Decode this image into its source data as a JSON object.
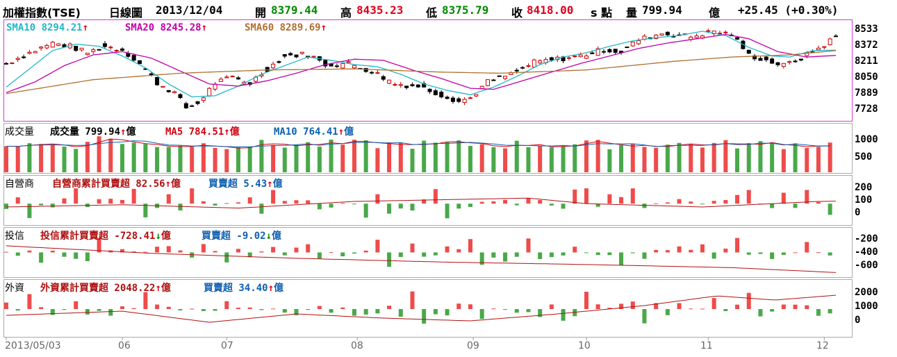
{
  "header": {
    "index_name": "加權指數(TSE)",
    "period": "日線圖",
    "date": "2013/12/04",
    "open_label": "開",
    "open": "8379.44",
    "high_label": "高",
    "high": "8435.23",
    "low_label": "低",
    "low": "8375.79",
    "close_label": "收",
    "close": "8418.00",
    "change_unit": "s 點",
    "volume_label": "量",
    "volume": "799.94",
    "volume_unit": "億",
    "change": "+25.45 (+0.30%)"
  },
  "legends": {
    "sma10": "SMA10 8294.21",
    "sma20": "SMA20 8245.28",
    "sma60": "SMA60 8289.69",
    "vol_title": "成交量",
    "vol_value": "成交量 799.94",
    "vol_unit": "億",
    "ma5": "MA5 784.51",
    "ma5_unit": "億",
    "ma10": "MA10 764.41",
    "ma10_unit": "億",
    "dealer_title": "自營商",
    "dealer_cum": "自營商累計買賣超 82.56",
    "dealer_unit": "億",
    "dealer_net": "買賣超 5.43",
    "dealer_net_unit": "億",
    "trust_title": "投信",
    "trust_cum": "投信累計買賣超 -728.41",
    "trust_unit": "億",
    "trust_net": "買賣超 -9.02",
    "trust_net_unit": "億",
    "foreign_title": "外資",
    "foreign_cum": "外資累計買賣超 2048.22",
    "foreign_unit": "億",
    "foreign_net": "買賣超 34.40",
    "foreign_net_unit": "億",
    "up_arrow": "↑",
    "down_arrow": "↓"
  },
  "axes": {
    "price_ticks": [
      "8533",
      "8372",
      "8211",
      "8050",
      "7889",
      "7728"
    ],
    "volume_ticks": [
      "1000",
      "500"
    ],
    "dealer_ticks": [
      "200",
      "100",
      "0"
    ],
    "trust_ticks": [
      "-200",
      "-400",
      "-600"
    ],
    "foreign_ticks": [
      "2000",
      "1000",
      "0"
    ],
    "x_labels": [
      "2013/05/03",
      "06",
      "07",
      "08",
      "09",
      "10",
      "11",
      "12"
    ]
  },
  "colors": {
    "up": "#e0001b",
    "down": "#008a00",
    "bar_up": "#ef4b4b",
    "bar_down": "#49a849",
    "sma10": "#20b8c8",
    "sma20": "#c000a8",
    "sma60": "#b07030",
    "ma5": "#d00010",
    "ma10": "#1060b0",
    "cum_line": "#b01010"
  },
  "chart_data": [
    {
      "type": "candlestick",
      "title": "加權指數(TSE) 日線圖",
      "ylim": [
        7650,
        8560
      ],
      "series": [
        {
          "name": "SMA10",
          "points": [
            [
              0,
              7950
            ],
            [
              8,
              8120
            ],
            [
              16,
              8290
            ],
            [
              24,
              8350
            ],
            [
              32,
              8330
            ],
            [
              40,
              8240
            ],
            [
              48,
              8130
            ],
            [
              56,
              7980
            ],
            [
              64,
              7860
            ],
            [
              72,
              7870
            ],
            [
              80,
              7960
            ],
            [
              88,
              8070
            ],
            [
              96,
              8150
            ],
            [
              104,
              8230
            ],
            [
              112,
              8200
            ],
            [
              120,
              8160
            ],
            [
              128,
              8140
            ],
            [
              136,
              8070
            ],
            [
              144,
              7980
            ],
            [
              152,
              7920
            ],
            [
              160,
              7880
            ],
            [
              168,
              7950
            ],
            [
              176,
              8050
            ],
            [
              184,
              8160
            ],
            [
              192,
              8230
            ],
            [
              200,
              8270
            ],
            [
              208,
              8330
            ],
            [
              216,
              8380
            ],
            [
              224,
              8410
            ],
            [
              232,
              8430
            ],
            [
              240,
              8470
            ],
            [
              248,
              8430
            ],
            [
              256,
              8320
            ],
            [
              264,
              8240
            ],
            [
              270,
              8230
            ],
            [
              278,
              8290
            ],
            [
              286,
              8294
            ]
          ]
        },
        {
          "name": "SMA20",
          "points": [
            [
              0,
              7900
            ],
            [
              10,
              8000
            ],
            [
              20,
              8150
            ],
            [
              30,
              8250
            ],
            [
              40,
              8280
            ],
            [
              50,
              8220
            ],
            [
              60,
              8100
            ],
            [
              70,
              7980
            ],
            [
              80,
              7960
            ],
            [
              90,
              8010
            ],
            [
              100,
              8080
            ],
            [
              110,
              8160
            ],
            [
              120,
              8210
            ],
            [
              130,
              8200
            ],
            [
              140,
              8110
            ],
            [
              150,
              8030
            ],
            [
              160,
              7940
            ],
            [
              168,
              7930
            ],
            [
              178,
              8010
            ],
            [
              188,
              8090
            ],
            [
              198,
              8170
            ],
            [
              208,
              8240
            ],
            [
              218,
              8310
            ],
            [
              228,
              8360
            ],
            [
              238,
              8400
            ],
            [
              248,
              8440
            ],
            [
              256,
              8400
            ],
            [
              266,
              8280
            ],
            [
              276,
              8230
            ],
            [
              286,
              8245
            ]
          ]
        },
        {
          "name": "SMA60",
          "points": [
            [
              0,
              7890
            ],
            [
              30,
              8020
            ],
            [
              60,
              8080
            ],
            [
              90,
              8110
            ],
            [
              120,
              8120
            ],
            [
              150,
              8090
            ],
            [
              170,
              8080
            ],
            [
              200,
              8110
            ],
            [
              230,
              8190
            ],
            [
              250,
              8230
            ],
            [
              270,
              8250
            ],
            [
              286,
              8290
            ]
          ]
        }
      ]
    },
    {
      "type": "bar",
      "title": "成交量",
      "ylim": [
        0,
        1400
      ],
      "series": [
        {
          "name": "成交量",
          "values_range": [
            650,
            1050
          ]
        },
        {
          "name": "MA5",
          "value": 784.51
        },
        {
          "name": "MA10",
          "value": 764.41
        }
      ]
    },
    {
      "type": "bar",
      "title": "自營商",
      "ylim": [
        -120,
        280
      ],
      "series": [
        {
          "name": "買賣超",
          "values_range": [
            -60,
            180
          ]
        },
        {
          "name": "自營商累計買賣超",
          "points": [
            [
              0,
              30
            ],
            [
              40,
              50
            ],
            [
              80,
              20
            ],
            [
              120,
              80
            ],
            [
              140,
              90
            ],
            [
              180,
              110
            ],
            [
              200,
              60
            ],
            [
              240,
              30
            ],
            [
              280,
              80
            ],
            [
              286,
              82.56
            ]
          ]
        }
      ]
    },
    {
      "type": "bar",
      "title": "投信",
      "ylim": [
        -780,
        -100
      ],
      "series": [
        {
          "name": "買賣超",
          "values_range": [
            -80,
            60
          ]
        },
        {
          "name": "投信累計買賣超",
          "points": [
            [
              0,
              -300
            ],
            [
              50,
              -420
            ],
            [
              100,
              -500
            ],
            [
              150,
              -560
            ],
            [
              200,
              -600
            ],
            [
              250,
              -650
            ],
            [
              286,
              -728.41
            ]
          ]
        }
      ]
    },
    {
      "type": "bar",
      "title": "外資",
      "ylim": [
        -800,
        2900
      ],
      "series": [
        {
          "name": "買賣超",
          "values_range": [
            -60,
            150
          ]
        },
        {
          "name": "外資累計買賣超",
          "points": [
            [
              0,
              600
            ],
            [
              40,
              900
            ],
            [
              70,
              100
            ],
            [
              100,
              700
            ],
            [
              130,
              400
            ],
            [
              160,
              200
            ],
            [
              190,
              700
            ],
            [
              220,
              1300
            ],
            [
              245,
              2000
            ],
            [
              265,
              1700
            ],
            [
              286,
              2048.22
            ]
          ]
        }
      ]
    }
  ]
}
